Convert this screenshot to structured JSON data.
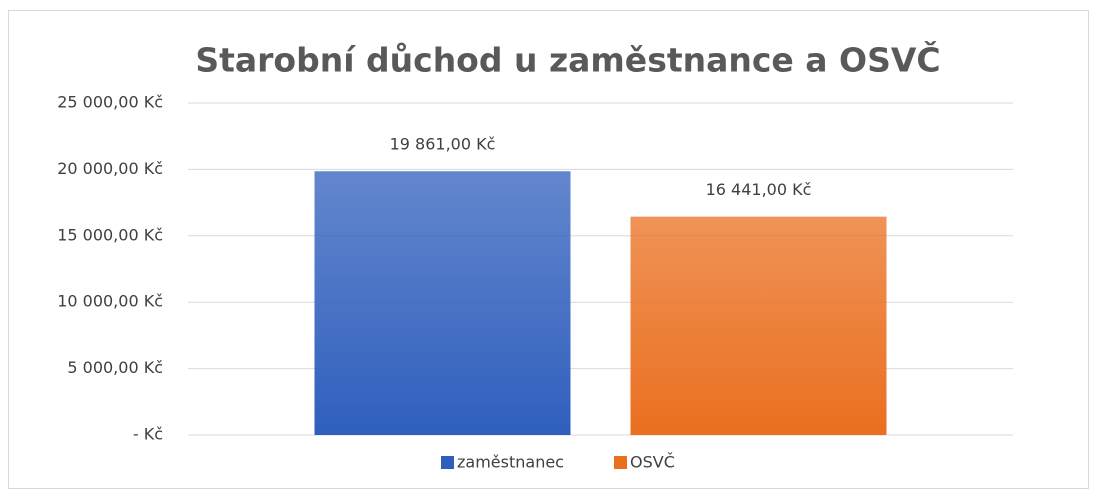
{
  "chart_data": {
    "type": "bar",
    "title": "Starobní důchod u zaměstnance a OSVČ",
    "categories": [
      null
    ],
    "series": [
      {
        "name": "zaměstnanec",
        "color": "#2f5fbd",
        "values": [
          19861
        ],
        "value_labels": [
          "19 861,00 Kč"
        ]
      },
      {
        "name": "OSVČ",
        "color": "#ea6f1f",
        "values": [
          16441
        ],
        "value_labels": [
          "16 441,00 Kč"
        ]
      }
    ],
    "ylim": [
      0,
      25000
    ],
    "yticks": [
      {
        "value": 0,
        "label": "-   Kč"
      },
      {
        "value": 5000,
        "label": "5 000,00 Kč"
      },
      {
        "value": 10000,
        "label": "10 000,00 Kč"
      },
      {
        "value": 15000,
        "label": "15 000,00 Kč"
      },
      {
        "value": 20000,
        "label": "20 000,00 Kč"
      },
      {
        "value": 25000,
        "label": "25 000,00 Kč"
      }
    ],
    "grid": true,
    "legend": "bottom"
  }
}
